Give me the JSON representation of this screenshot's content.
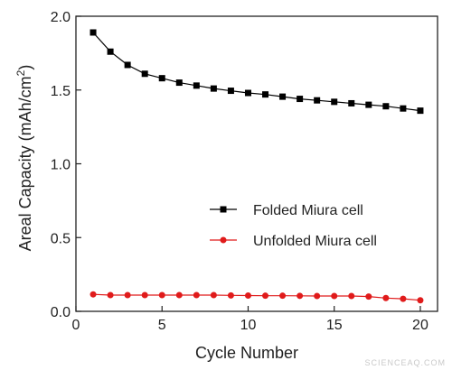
{
  "chart_data": {
    "type": "line",
    "xlabel": "Cycle Number",
    "ylabel_main": "Areal Capacity (mAh/cm",
    "ylabel_sup": "2",
    "ylabel_close": ")",
    "xlim": [
      0,
      21
    ],
    "ylim": [
      0,
      2.0
    ],
    "xticks": [
      0,
      5,
      10,
      15,
      20
    ],
    "xtick_labels": [
      "0",
      "5",
      "10",
      "15",
      "20"
    ],
    "yticks": [
      0,
      0.5,
      1.0,
      1.5,
      2.0
    ],
    "ytick_labels": [
      "0.0",
      "0.5",
      "1.0",
      "1.5",
      "2.0"
    ],
    "grid": false,
    "legend_position": "center-right",
    "series": [
      {
        "name": "Folded Miura cell",
        "color": "#000000",
        "marker": "square",
        "x": [
          1,
          2,
          3,
          4,
          5,
          6,
          7,
          8,
          9,
          10,
          11,
          12,
          13,
          14,
          15,
          16,
          17,
          18,
          19,
          20
        ],
        "y": [
          1.89,
          1.76,
          1.67,
          1.61,
          1.58,
          1.55,
          1.53,
          1.51,
          1.495,
          1.48,
          1.47,
          1.455,
          1.44,
          1.43,
          1.42,
          1.41,
          1.4,
          1.39,
          1.375,
          1.36
        ]
      },
      {
        "name": "Unfolded Miura cell",
        "color": "#e01b1b",
        "marker": "circle",
        "x": [
          1,
          2,
          3,
          4,
          5,
          6,
          7,
          8,
          9,
          10,
          11,
          12,
          13,
          14,
          15,
          16,
          17,
          18,
          19,
          20
        ],
        "y": [
          0.115,
          0.11,
          0.11,
          0.11,
          0.11,
          0.11,
          0.11,
          0.11,
          0.108,
          0.107,
          0.106,
          0.106,
          0.105,
          0.104,
          0.104,
          0.104,
          0.1,
          0.09,
          0.085,
          0.075
        ]
      }
    ]
  },
  "watermark": "SCIENCEAQ.COM"
}
